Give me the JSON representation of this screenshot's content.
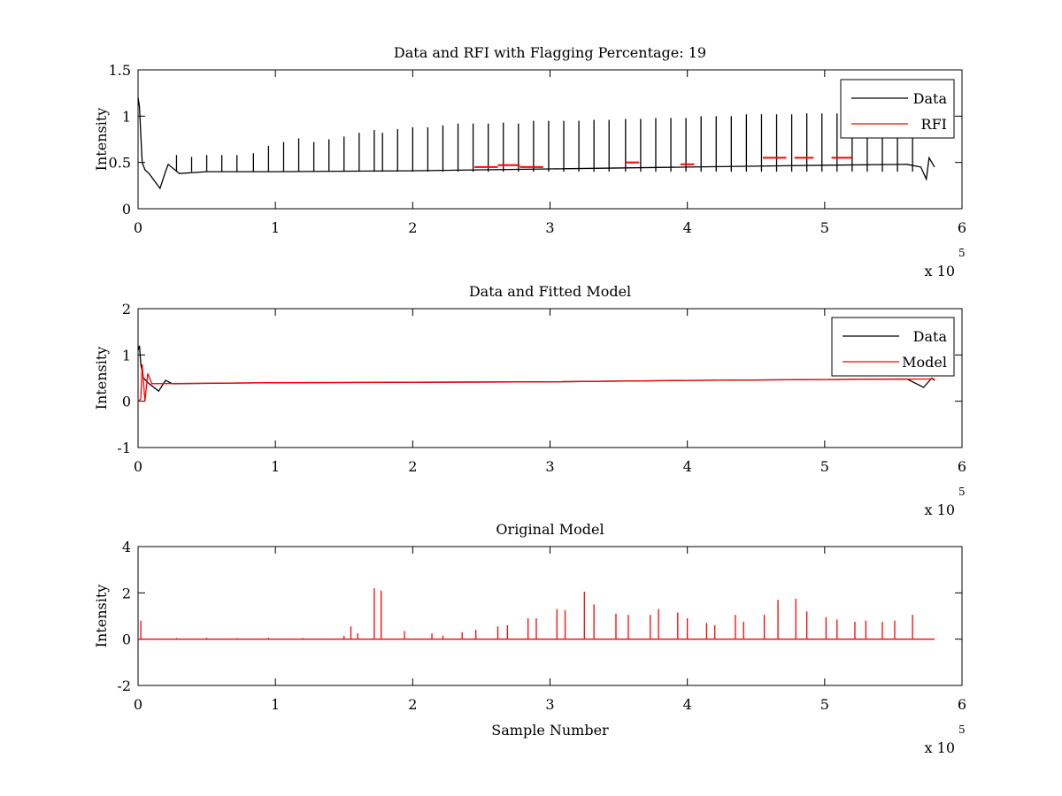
{
  "figure": {
    "background": "#ffffff"
  },
  "chart_data": [
    {
      "type": "line",
      "title": "Data and RFI with Flagging Percentage: 19",
      "xlabel": "",
      "ylabel": "Intensity",
      "xlim": [
        0,
        6
      ],
      "ylim": [
        0,
        1.5
      ],
      "xticks": [
        "0",
        "1",
        "2",
        "3",
        "4",
        "5",
        "6"
      ],
      "yticks": [
        "0",
        "0.5",
        "1",
        "1.5"
      ],
      "x_exponent": {
        "base": "x 10",
        "power": "5"
      },
      "grid": false,
      "legend": {
        "position": "top-right",
        "entries": [
          "Data",
          "RFI"
        ]
      },
      "series": [
        {
          "name": "Data",
          "color": "#000000",
          "baseline": 0.4,
          "x": [
            0,
            0.01,
            0.02,
            0.03,
            0.05,
            0.08,
            0.12,
            0.16,
            0.2,
            0.22,
            0.3,
            0.5,
            1.0,
            2.0,
            3.0,
            4.0,
            5.0,
            5.6,
            5.7,
            5.74,
            5.76,
            5.8
          ],
          "y": [
            1.2,
            1.1,
            0.8,
            0.5,
            0.42,
            0.38,
            0.3,
            0.22,
            0.4,
            0.48,
            0.38,
            0.4,
            0.4,
            0.41,
            0.43,
            0.45,
            0.47,
            0.48,
            0.45,
            0.32,
            0.55,
            0.45
          ],
          "spikes": [
            [
              0.28,
              0.58
            ],
            [
              0.39,
              0.56
            ],
            [
              0.5,
              0.58
            ],
            [
              0.61,
              0.58
            ],
            [
              0.72,
              0.58
            ],
            [
              0.84,
              0.6
            ],
            [
              0.95,
              0.68
            ],
            [
              1.06,
              0.72
            ],
            [
              1.17,
              0.76
            ],
            [
              1.28,
              0.72
            ],
            [
              1.39,
              0.75
            ],
            [
              1.5,
              0.78
            ],
            [
              1.61,
              0.82
            ],
            [
              1.72,
              0.85
            ],
            [
              1.78,
              0.82
            ],
            [
              1.89,
              0.86
            ],
            [
              2.0,
              0.88
            ],
            [
              2.11,
              0.88
            ],
            [
              2.22,
              0.9
            ],
            [
              2.33,
              0.92
            ],
            [
              2.44,
              0.92
            ],
            [
              2.55,
              0.92
            ],
            [
              2.66,
              0.93
            ],
            [
              2.77,
              0.92
            ],
            [
              2.88,
              0.95
            ],
            [
              2.99,
              0.95
            ],
            [
              3.1,
              0.95
            ],
            [
              3.21,
              0.95
            ],
            [
              3.32,
              0.96
            ],
            [
              3.43,
              0.96
            ],
            [
              3.55,
              0.97
            ],
            [
              3.66,
              0.97
            ],
            [
              3.77,
              0.98
            ],
            [
              3.88,
              0.98
            ],
            [
              3.99,
              0.98
            ],
            [
              4.1,
              1.0
            ],
            [
              4.21,
              1.0
            ],
            [
              4.32,
              1.0
            ],
            [
              4.43,
              1.02
            ],
            [
              4.54,
              1.02
            ],
            [
              4.65,
              1.02
            ],
            [
              4.76,
              1.02
            ],
            [
              4.87,
              1.03
            ],
            [
              4.98,
              1.03
            ],
            [
              5.09,
              1.03
            ],
            [
              5.2,
              1.04
            ],
            [
              5.31,
              1.05
            ],
            [
              5.42,
              1.05
            ],
            [
              5.53,
              1.06
            ],
            [
              5.64,
              1.06
            ]
          ]
        },
        {
          "name": "RFI",
          "color": "#ff0000",
          "segments": [
            {
              "x0": 2.45,
              "x1": 2.62,
              "y": 0.45
            },
            {
              "x0": 2.62,
              "x1": 2.78,
              "y": 0.47
            },
            {
              "x0": 2.78,
              "x1": 2.95,
              "y": 0.45
            },
            {
              "x0": 3.55,
              "x1": 3.65,
              "y": 0.5
            },
            {
              "x0": 3.95,
              "x1": 4.05,
              "y": 0.48
            },
            {
              "x0": 4.55,
              "x1": 4.72,
              "y": 0.55
            },
            {
              "x0": 4.78,
              "x1": 4.92,
              "y": 0.55
            },
            {
              "x0": 5.05,
              "x1": 5.2,
              "y": 0.55
            }
          ]
        }
      ]
    },
    {
      "type": "line",
      "title": "Data and Fitted Model",
      "xlabel": "",
      "ylabel": "Intensity",
      "xlim": [
        0,
        6
      ],
      "ylim": [
        -1,
        2
      ],
      "xticks": [
        "0",
        "1",
        "2",
        "3",
        "4",
        "5",
        "6"
      ],
      "yticks": [
        "-1",
        "0",
        "1",
        "2"
      ],
      "x_exponent": {
        "base": "x 10",
        "power": "5"
      },
      "grid": false,
      "legend": {
        "position": "top-right",
        "entries": [
          "Data",
          "Model"
        ]
      },
      "series": [
        {
          "name": "Data",
          "color": "#000000",
          "x": [
            0,
            0.01,
            0.02,
            0.04,
            0.08,
            0.15,
            0.2,
            0.25,
            1.0,
            2.0,
            3.0,
            4.0,
            5.0,
            5.6,
            5.72,
            5.78,
            5.8
          ],
          "y": [
            1.1,
            1.2,
            0.8,
            0.5,
            0.38,
            0.22,
            0.45,
            0.38,
            0.4,
            0.41,
            0.42,
            0.45,
            0.47,
            0.48,
            0.3,
            0.5,
            0.45
          ]
        },
        {
          "name": "Model",
          "color": "#ff0000",
          "x": [
            0,
            0.02,
            0.03,
            0.05,
            0.07,
            0.1,
            1.0,
            2.0,
            3.0,
            4.0,
            5.0,
            5.8
          ],
          "y": [
            0.0,
            0.05,
            0.8,
            0.0,
            0.6,
            0.38,
            0.4,
            0.41,
            0.42,
            0.45,
            0.47,
            0.48
          ]
        }
      ]
    },
    {
      "type": "line",
      "title": "Original Model",
      "xlabel": "Sample Number",
      "ylabel": "Intensity",
      "xlim": [
        0,
        6
      ],
      "ylim": [
        -2,
        4
      ],
      "xticks": [
        "0",
        "1",
        "2",
        "3",
        "4",
        "5",
        "6"
      ],
      "yticks": [
        "-2",
        "0",
        "2",
        "4"
      ],
      "x_exponent": {
        "base": "x 10",
        "power": "5"
      },
      "grid": false,
      "series": [
        {
          "name": "",
          "color": "#ff0000",
          "baseline": 0,
          "spikes": [
            [
              0.02,
              0.8
            ],
            [
              0.28,
              0.05
            ],
            [
              0.5,
              0.06
            ],
            [
              0.72,
              0.05
            ],
            [
              0.95,
              0.06
            ],
            [
              1.2,
              0.05
            ],
            [
              1.5,
              0.15
            ],
            [
              1.55,
              0.55
            ],
            [
              1.6,
              0.25
            ],
            [
              1.72,
              2.2
            ],
            [
              1.77,
              2.1
            ],
            [
              1.94,
              0.35
            ],
            [
              2.14,
              0.25
            ],
            [
              2.22,
              0.15
            ],
            [
              2.36,
              0.3
            ],
            [
              2.46,
              0.4
            ],
            [
              2.62,
              0.55
            ],
            [
              2.69,
              0.6
            ],
            [
              2.84,
              0.9
            ],
            [
              2.9,
              0.9
            ],
            [
              3.05,
              1.3
            ],
            [
              3.11,
              1.25
            ],
            [
              3.25,
              2.05
            ],
            [
              3.32,
              1.5
            ],
            [
              3.48,
              1.1
            ],
            [
              3.57,
              1.05
            ],
            [
              3.73,
              1.05
            ],
            [
              3.79,
              1.3
            ],
            [
              3.93,
              1.15
            ],
            [
              4.0,
              0.9
            ],
            [
              4.14,
              0.7
            ],
            [
              4.2,
              0.6
            ],
            [
              4.35,
              1.05
            ],
            [
              4.41,
              0.75
            ],
            [
              4.56,
              1.05
            ],
            [
              4.66,
              1.7
            ],
            [
              4.79,
              1.75
            ],
            [
              4.87,
              1.2
            ],
            [
              5.01,
              0.95
            ],
            [
              5.09,
              0.85
            ],
            [
              5.22,
              0.75
            ],
            [
              5.3,
              0.8
            ],
            [
              5.42,
              0.75
            ],
            [
              5.51,
              0.8
            ],
            [
              5.64,
              1.05
            ]
          ]
        }
      ]
    }
  ]
}
